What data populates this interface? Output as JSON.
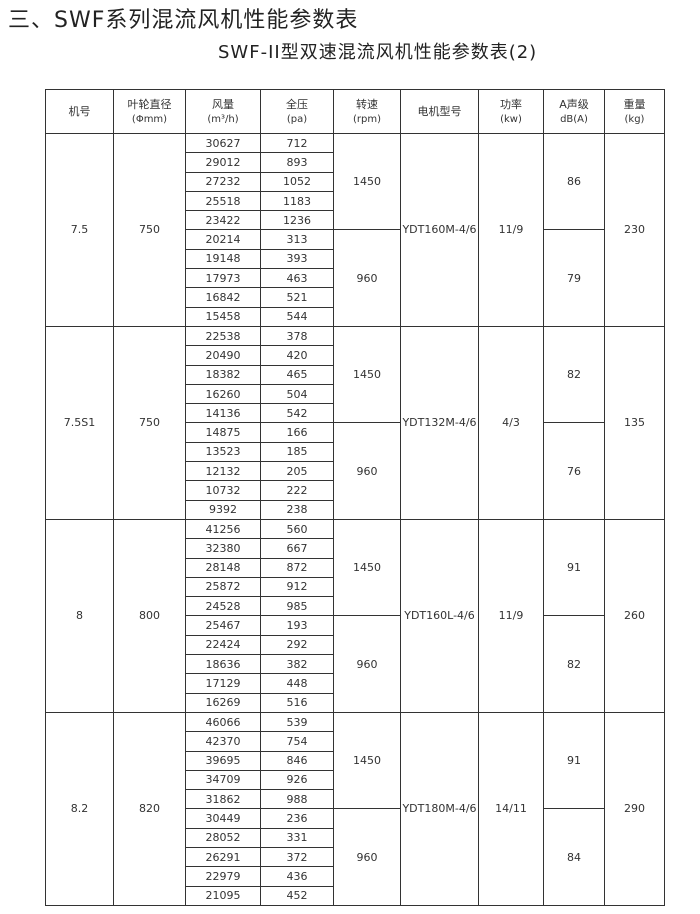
{
  "title": "三、SWF系列混流风机性能参数表",
  "subtitle": "SWF-II型双速混流风机性能参数表(2)",
  "headers": [
    {
      "label": "机号",
      "unit": ""
    },
    {
      "label": "叶轮直径",
      "unit": "(Φmm)"
    },
    {
      "label": "风量",
      "unit": "(m³/h)"
    },
    {
      "label": "全压",
      "unit": "(pa)"
    },
    {
      "label": "转速",
      "unit": "(rpm)"
    },
    {
      "label": "电机型号",
      "unit": ""
    },
    {
      "label": "功率",
      "unit": "(kw)"
    },
    {
      "label": "A声级",
      "unit": "dB(A)"
    },
    {
      "label": "重量",
      "unit": "(kg)"
    }
  ],
  "groups": [
    {
      "model": "7.5",
      "diameter": "750",
      "motor": "YDT160M-4/6",
      "power": "11/9",
      "weight": "230",
      "speeds": [
        {
          "rpm": "1450",
          "noise": "86",
          "rows": [
            [
              "30627",
              "712"
            ],
            [
              "29012",
              "893"
            ],
            [
              "27232",
              "1052"
            ],
            [
              "25518",
              "1183"
            ],
            [
              "23422",
              "1236"
            ]
          ]
        },
        {
          "rpm": "960",
          "noise": "79",
          "rows": [
            [
              "20214",
              "313"
            ],
            [
              "19148",
              "393"
            ],
            [
              "17973",
              "463"
            ],
            [
              "16842",
              "521"
            ],
            [
              "15458",
              "544"
            ]
          ]
        }
      ]
    },
    {
      "model": "7.5S1",
      "diameter": "750",
      "motor": "YDT132M-4/6",
      "power": "4/3",
      "weight": "135",
      "speeds": [
        {
          "rpm": "1450",
          "noise": "82",
          "rows": [
            [
              "22538",
              "378"
            ],
            [
              "20490",
              "420"
            ],
            [
              "18382",
              "465"
            ],
            [
              "16260",
              "504"
            ],
            [
              "14136",
              "542"
            ]
          ]
        },
        {
          "rpm": "960",
          "noise": "76",
          "rows": [
            [
              "14875",
              "166"
            ],
            [
              "13523",
              "185"
            ],
            [
              "12132",
              "205"
            ],
            [
              "10732",
              "222"
            ],
            [
              "9392",
              "238"
            ]
          ]
        }
      ]
    },
    {
      "model": "8",
      "diameter": "800",
      "motor": "YDT160L-4/6",
      "power": "11/9",
      "weight": "260",
      "speeds": [
        {
          "rpm": "1450",
          "noise": "91",
          "rows": [
            [
              "41256",
              "560"
            ],
            [
              "32380",
              "667"
            ],
            [
              "28148",
              "872"
            ],
            [
              "25872",
              "912"
            ],
            [
              "24528",
              "985"
            ]
          ]
        },
        {
          "rpm": "960",
          "noise": "82",
          "rows": [
            [
              "25467",
              "193"
            ],
            [
              "22424",
              "292"
            ],
            [
              "18636",
              "382"
            ],
            [
              "17129",
              "448"
            ],
            [
              "16269",
              "516"
            ]
          ]
        }
      ]
    },
    {
      "model": "8.2",
      "diameter": "820",
      "motor": "YDT180M-4/6",
      "power": "14/11",
      "weight": "290",
      "speeds": [
        {
          "rpm": "1450",
          "noise": "91",
          "rows": [
            [
              "46066",
              "539"
            ],
            [
              "42370",
              "754"
            ],
            [
              "39695",
              "846"
            ],
            [
              "34709",
              "926"
            ],
            [
              "31862",
              "988"
            ]
          ]
        },
        {
          "rpm": "960",
          "noise": "84",
          "rows": [
            [
              "30449",
              "236"
            ],
            [
              "28052",
              "331"
            ],
            [
              "26291",
              "372"
            ],
            [
              "22979",
              "436"
            ],
            [
              "21095",
              "452"
            ]
          ]
        }
      ]
    }
  ]
}
